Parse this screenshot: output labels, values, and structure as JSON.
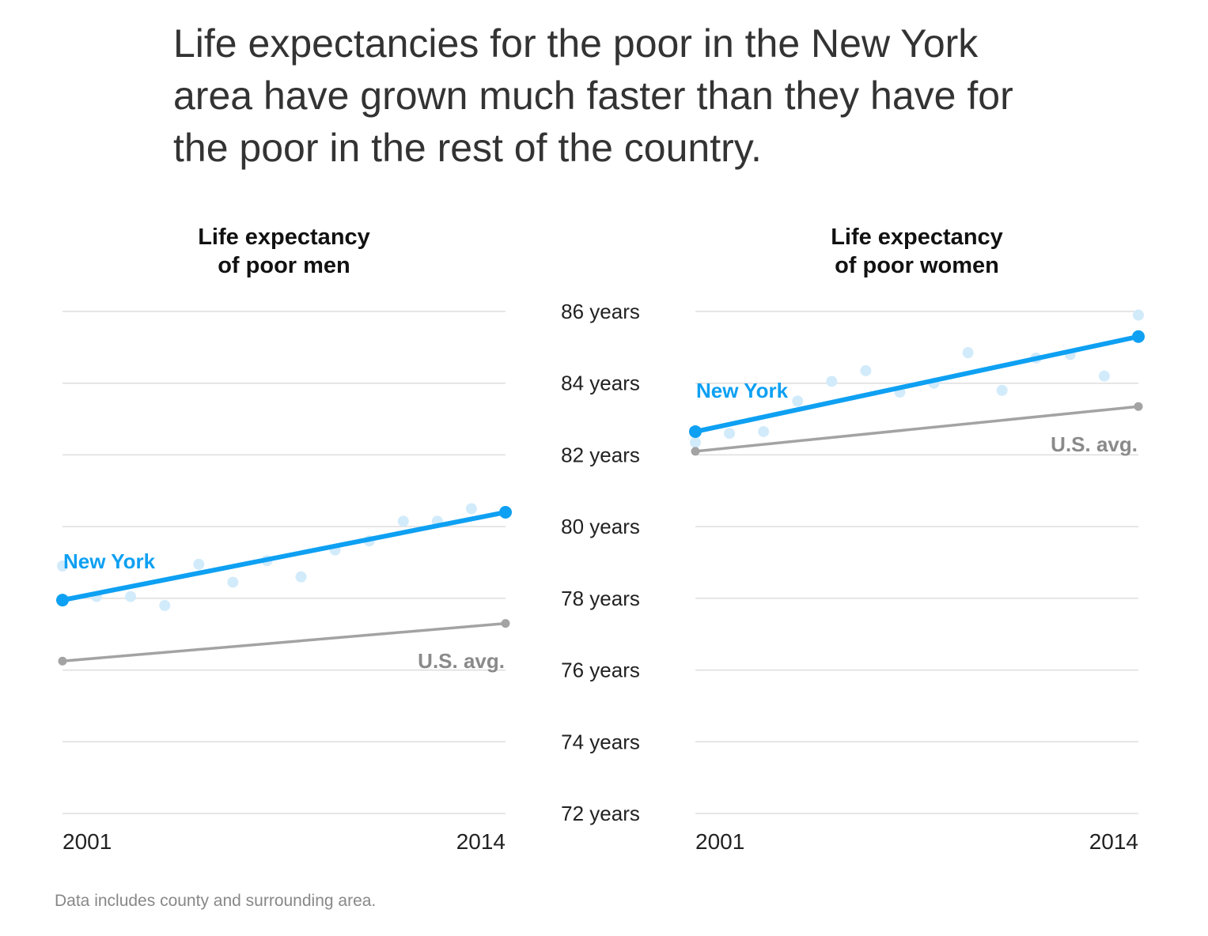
{
  "headline": "Life expectancies for the poor in the New York area have grown much faster than they have for the poor in the rest of the country.",
  "note": "Data includes county and surrounding area.",
  "y_tick_labels": [
    "86 years",
    "84 years",
    "82 years",
    "80 years",
    "78 years",
    "76 years",
    "74 years",
    "72 years"
  ],
  "colors": {
    "ny": "#0ea0f2",
    "ny_dots": "#d2ebfb",
    "us": "#a3a3a3",
    "us_label": "#8a8a8a",
    "grid": "#dddddd",
    "text": "#222222"
  },
  "chart_data": [
    {
      "type": "line",
      "title": "Life expectancy of poor men",
      "title_lines": [
        "Life expectancy",
        "of poor men"
      ],
      "x_tick_labels": [
        "2001",
        "2014"
      ],
      "ylim": [
        72,
        86
      ],
      "ylabel": "",
      "grid": true,
      "series": [
        {
          "name": "New York",
          "label": "New York",
          "kind": "trend",
          "x": [
            2001,
            2014
          ],
          "values": [
            77.95,
            80.4
          ]
        },
        {
          "name": "U.S. avg.",
          "label": "U.S. avg.",
          "kind": "trend",
          "x": [
            2001,
            2014
          ],
          "values": [
            76.25,
            77.3
          ]
        },
        {
          "name": "New York (annual)",
          "kind": "dots",
          "x": [
            2001,
            2002,
            2003,
            2004,
            2005,
            2006,
            2007,
            2008,
            2009,
            2010,
            2011,
            2012,
            2013,
            2014
          ],
          "values": [
            78.9,
            78.05,
            78.05,
            77.8,
            78.95,
            78.45,
            79.05,
            78.6,
            79.35,
            79.6,
            80.15,
            80.15,
            80.5,
            80.4
          ]
        }
      ]
    },
    {
      "type": "line",
      "title": "Life expectancy of poor women",
      "title_lines": [
        "Life expectancy",
        "of poor women"
      ],
      "x_tick_labels": [
        "2001",
        "2014"
      ],
      "ylim": [
        72,
        86
      ],
      "ylabel": "",
      "grid": true,
      "series": [
        {
          "name": "New York",
          "label": "New York",
          "kind": "trend",
          "x": [
            2001,
            2014
          ],
          "values": [
            82.65,
            85.3
          ]
        },
        {
          "name": "U.S. avg.",
          "label": "U.S. avg.",
          "kind": "trend",
          "x": [
            2001,
            2014
          ],
          "values": [
            82.1,
            83.35
          ]
        },
        {
          "name": "New York (annual)",
          "kind": "dots",
          "x": [
            2001,
            2002,
            2003,
            2004,
            2005,
            2006,
            2007,
            2008,
            2009,
            2010,
            2011,
            2012,
            2013,
            2014
          ],
          "values": [
            82.35,
            82.6,
            82.65,
            83.5,
            84.05,
            84.35,
            83.75,
            84.0,
            84.85,
            83.8,
            84.7,
            84.8,
            84.2,
            85.9
          ]
        }
      ]
    }
  ]
}
